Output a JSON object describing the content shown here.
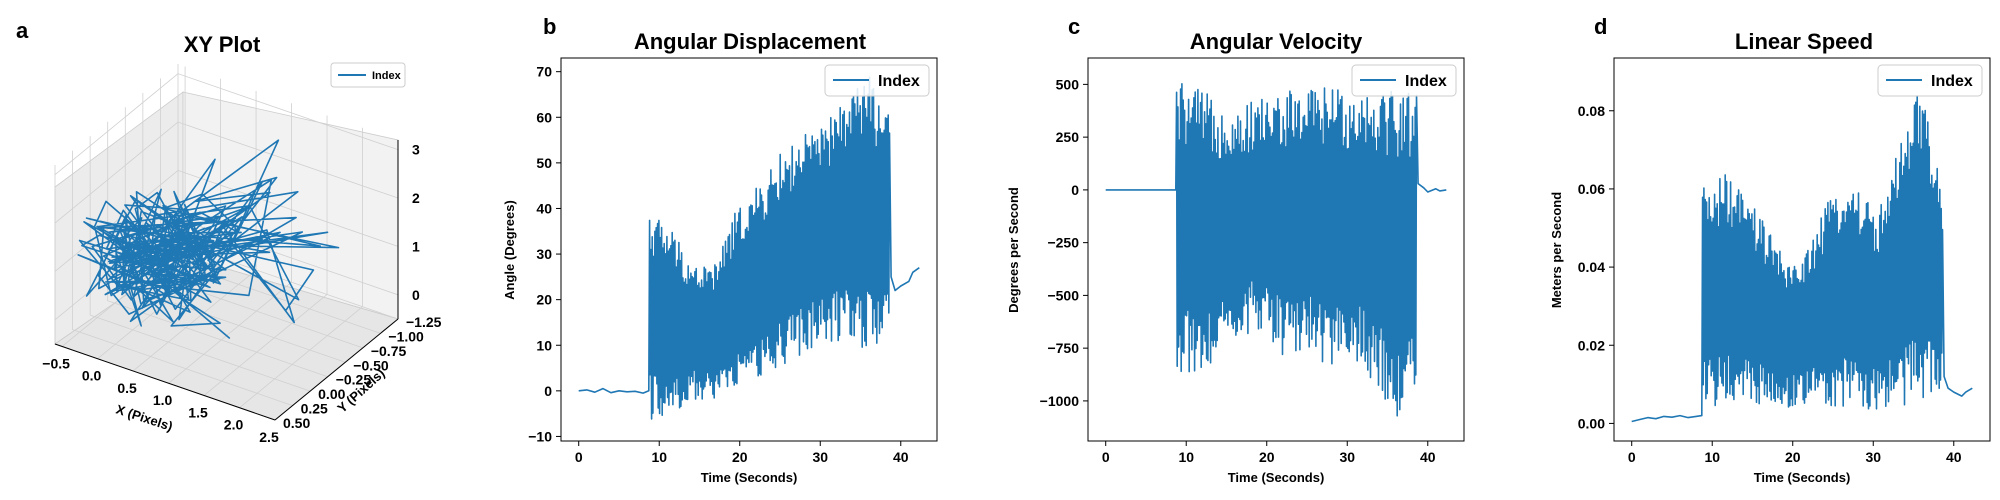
{
  "chart_data": [
    {
      "panel_letter": "a",
      "type": "line-3d",
      "title": "XY Plot",
      "xlabel": "X (Pixels)",
      "ylabel": "Y (Pixels)",
      "zlabel": "",
      "x_ticks": [
        "−0.5",
        "0.0",
        "0.5",
        "1.0",
        "1.5",
        "2.0",
        "2.5"
      ],
      "y_ticks": [
        "0.50",
        "0.25",
        "0.00",
        "−0.25",
        "−0.50",
        "−0.75",
        "−1.00",
        "−1.25"
      ],
      "z_ticks": [
        "3",
        "2",
        "1",
        "0"
      ],
      "xlim": [
        -0.6,
        2.5
      ],
      "ylim": [
        -1.25,
        0.5
      ],
      "zlim": [
        -0.5,
        3.2
      ],
      "legend": [
        "Index"
      ],
      "legend_position": "top-right",
      "color": "#1f77b4"
    },
    {
      "panel_letter": "b",
      "type": "line",
      "title": "Angular Displacement",
      "xlabel": "Time (Seconds)",
      "ylabel": "Angle (Degrees)",
      "x_ticks": [
        "0",
        "10",
        "20",
        "30",
        "40"
      ],
      "y_ticks": [
        "−10",
        "0",
        "10",
        "20",
        "30",
        "40",
        "50",
        "60",
        "70"
      ],
      "xlim": [
        -2.2,
        44.5
      ],
      "ylim": [
        -11,
        73
      ],
      "legend": [
        "Index"
      ],
      "legend_position": "top-right",
      "color": "#1f77b4",
      "series": [
        {
          "name": "Index",
          "segments": [
            {
              "x": [
                0,
                1,
                2,
                3,
                4,
                5,
                6,
                7,
                8,
                8.7
              ],
              "y": [
                0,
                0.2,
                -0.3,
                0.5,
                -0.4,
                0,
                -0.2,
                -0.1,
                -0.5,
                0
              ]
            },
            {
              "x_start": 8.8,
              "x_end": 38.6,
              "lower": [
                -7,
                -5,
                -2,
                -2,
                1,
                3,
                5,
                8,
                10,
                11,
                8,
                10
              ],
              "upper": [
                40,
                36,
                28,
                28,
                40,
                45,
                52,
                56,
                58,
                65,
                70,
                60
              ]
            },
            {
              "x": [
                38.8,
                39.3,
                40,
                41,
                41.5,
                42.3
              ],
              "y": [
                25,
                22,
                23,
                24,
                26,
                27
              ]
            }
          ]
        }
      ]
    },
    {
      "panel_letter": "c",
      "type": "line",
      "title": "Angular Velocity",
      "xlabel": "Time (Seconds)",
      "ylabel": "Degrees per Second",
      "x_ticks": [
        "0",
        "10",
        "20",
        "30",
        "40"
      ],
      "y_ticks": [
        "−1000",
        "−750",
        "−500",
        "−250",
        "0",
        "250",
        "500"
      ],
      "xlim": [
        -2.2,
        44.5
      ],
      "ylim": [
        -1190,
        625
      ],
      "legend": [
        "Index"
      ],
      "legend_position": "top-right",
      "color": "#1f77b4",
      "series": [
        {
          "name": "Index",
          "segments": [
            {
              "x": [
                0,
                2,
                4,
                6,
                8,
                8.7
              ],
              "y": [
                0,
                0,
                0,
                0,
                0,
                0
              ]
            },
            {
              "x_start": 8.8,
              "x_end": 38.6,
              "lower": [
                -900,
                -850,
                -800,
                -700,
                -650,
                -820,
                -780,
                -850,
                -800,
                -900,
                -1100,
                -950
              ],
              "upper": [
                530,
                480,
                420,
                400,
                450,
                470,
                490,
                500,
                480,
                510,
                500,
                480
              ]
            },
            {
              "x": [
                38.8,
                39.5,
                40,
                41,
                41.5,
                42.3
              ],
              "y": [
                30,
                10,
                -10,
                5,
                -5,
                0
              ]
            }
          ]
        }
      ]
    },
    {
      "panel_letter": "d",
      "type": "line",
      "title": "Linear Speed",
      "xlabel": "Time (Seconds)",
      "ylabel": "Meters per Second",
      "x_ticks": [
        "0",
        "10",
        "20",
        "30",
        "40"
      ],
      "y_ticks": [
        "0.00",
        "0.02",
        "0.04",
        "0.06",
        "0.08"
      ],
      "xlim": [
        -2.2,
        44.5
      ],
      "ylim": [
        -0.0045,
        0.0935
      ],
      "legend": [
        "Index"
      ],
      "legend_position": "top-right",
      "color": "#1f77b4",
      "series": [
        {
          "name": "Index",
          "segments": [
            {
              "x": [
                0,
                1,
                2,
                3,
                4,
                5,
                6,
                7,
                8,
                8.7
              ],
              "y": [
                0.0005,
                0.001,
                0.0015,
                0.0012,
                0.0018,
                0.0016,
                0.002,
                0.0015,
                0.0018,
                0.002
              ]
            },
            {
              "x_start": 8.8,
              "x_end": 38.6,
              "lower": [
                0.005,
                0.004,
                0.006,
                0.004,
                0.004,
                0.005,
                0.004,
                0.004,
                0.003,
                0.005,
                0.004,
                0.008
              ],
              "upper": [
                0.06,
                0.064,
                0.058,
                0.05,
                0.04,
                0.047,
                0.06,
                0.062,
                0.054,
                0.07,
                0.087,
                0.06
              ]
            },
            {
              "x": [
                38.8,
                39.3,
                40,
                41,
                41.5,
                42.3
              ],
              "y": [
                0.012,
                0.009,
                0.008,
                0.007,
                0.008,
                0.009
              ]
            }
          ]
        }
      ]
    }
  ]
}
